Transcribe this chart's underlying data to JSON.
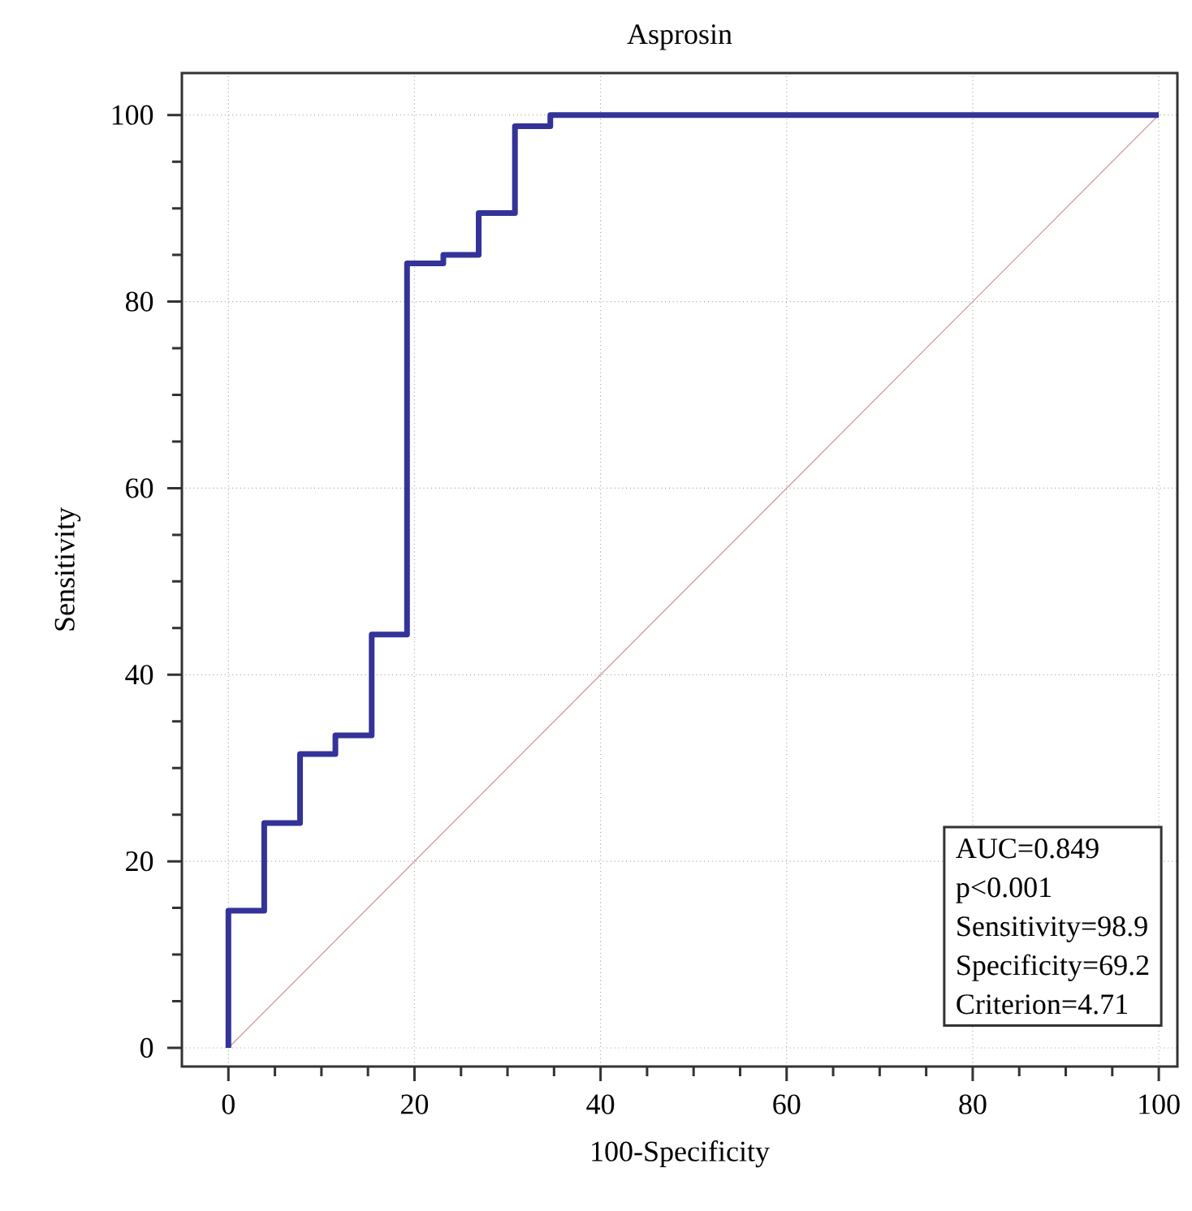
{
  "chart_data": {
    "type": "line",
    "title": "Asprosin",
    "xlabel": "100-Specificity",
    "ylabel": "Sensitivity",
    "xlim": [
      -5,
      102
    ],
    "ylim": [
      -2,
      104.5
    ],
    "xticks": [
      0,
      20,
      40,
      60,
      80,
      100
    ],
    "yticks": [
      0,
      20,
      40,
      60,
      80,
      100
    ],
    "grid": true,
    "marker": "none",
    "series": [
      {
        "type": "line",
        "color": "#d09090",
        "x": [
          0,
          100
        ],
        "values": [
          0,
          100
        ]
      },
      {
        "type": "step",
        "color": "#333399",
        "x": [
          0,
          0,
          3.85,
          7.7,
          11.5,
          15.4,
          19.2,
          23.1,
          26.9,
          30.8,
          34.6,
          100
        ],
        "values": [
          0,
          14.7,
          24.1,
          31.5,
          33.5,
          44.3,
          84.1,
          85.0,
          89.5,
          98.8,
          100,
          100
        ]
      }
    ],
    "annotations": [
      "AUC=0.849",
      "p<0.001",
      "Sensitivity=98.9",
      "Specificity=69.2",
      "Criterion=4.71"
    ]
  }
}
